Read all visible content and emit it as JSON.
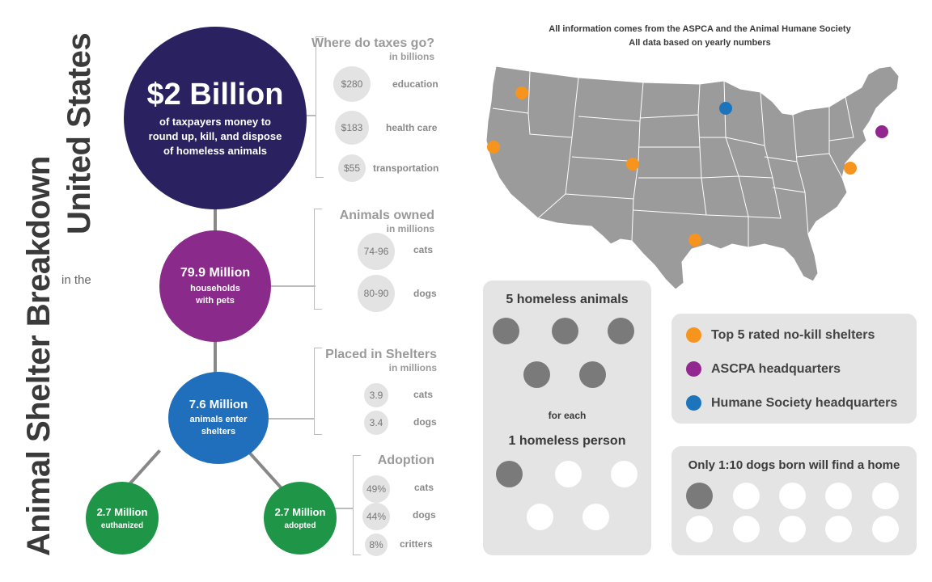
{
  "title": {
    "line1": "Animal Shelter Breakdown",
    "small": "in the",
    "line2": "United States"
  },
  "taxes": {
    "big": "$2 Billion",
    "sub": "of taxpayers money to round up, kill, and dispose of homeless animals",
    "heading": "Where do taxes go?",
    "unit": "in billions",
    "items": [
      {
        "value": "$280",
        "label": "education"
      },
      {
        "value": "$183",
        "label": "health care"
      },
      {
        "value": "$55",
        "label": "transportation"
      }
    ]
  },
  "households": {
    "big": "79.9 Million",
    "sub": "households with pets",
    "heading": "Animals owned",
    "unit": "in millions",
    "items": [
      {
        "value": "74-96",
        "label": "cats"
      },
      {
        "value": "80-90",
        "label": "dogs"
      }
    ]
  },
  "shelters": {
    "big": "7.6 Million",
    "sub": "animals enter shelters",
    "heading": "Placed in Shelters",
    "unit": "in millions",
    "items": [
      {
        "value": "3.9",
        "label": "cats"
      },
      {
        "value": "3.4",
        "label": "dogs"
      }
    ]
  },
  "euthanized": {
    "big": "2.7 Million",
    "sub": "euthanized"
  },
  "adopted": {
    "big": "2.7 Million",
    "sub": "adopted",
    "heading": "Adoption",
    "items": [
      {
        "value": "49%",
        "label": "cats"
      },
      {
        "value": "44%",
        "label": "dogs"
      },
      {
        "value": "8%",
        "label": "critters"
      }
    ]
  },
  "map": {
    "note1": "All information comes from the ASPCA and the Animal Humane Society",
    "note2": "All data based on yearly numbers"
  },
  "ratio": {
    "top": "5 homeless animals",
    "mid": "for each",
    "bottom": "1 homeless person"
  },
  "legend": {
    "items": [
      {
        "label": "Top 5 rated no-kill shelters",
        "color": "#f7941d"
      },
      {
        "label": "ASCPA headquarters",
        "color": "#92278f"
      },
      {
        "label": "Humane Society headquarters",
        "color": "#1c75bc"
      }
    ]
  },
  "dogs": {
    "text": "Only 1:10 dogs born will find a home"
  },
  "colors": {
    "navy": "#2a2260",
    "purple": "#8a2a8a",
    "blue": "#1f6fbd",
    "green": "#1f9548",
    "orange": "#f7941d",
    "map_gray": "#9b9b9b"
  }
}
